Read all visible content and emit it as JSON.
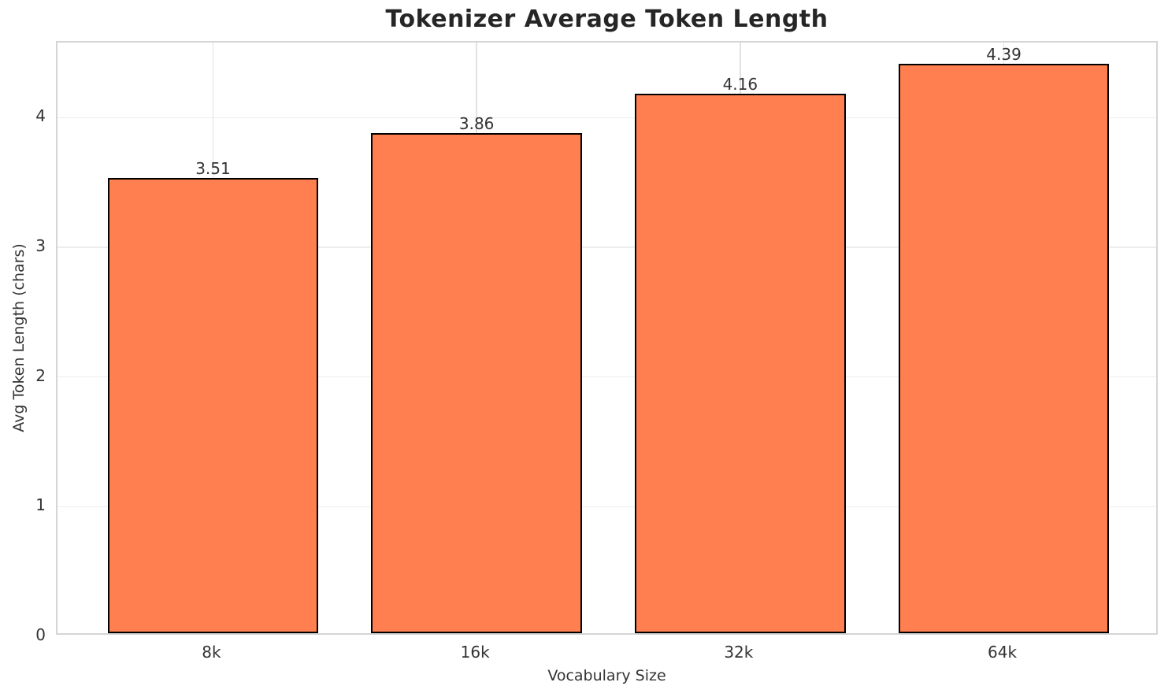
{
  "chart_data": {
    "type": "bar",
    "title": "Tokenizer Average Token Length",
    "xlabel": "Vocabulary Size",
    "ylabel": "Avg Token Length (chars)",
    "categories": [
      "8k",
      "16k",
      "32k",
      "64k"
    ],
    "values": [
      3.51,
      3.86,
      4.16,
      4.39
    ],
    "value_labels": [
      "3.51",
      "3.86",
      "4.16",
      "4.39"
    ],
    "yticks": [
      0,
      1,
      2,
      3,
      4
    ],
    "ylim": [
      0,
      4.58
    ],
    "xlim": [
      -0.59,
      3.59
    ],
    "bar_width": 0.8,
    "grid": true,
    "legend_position": "none",
    "colors": {
      "bar_fill": "#ff7f50",
      "bar_edge": "#000000",
      "grid_line_h": "#ededed",
      "grid_line_v": "#e2e2e2",
      "plot_border": "#d5d5d5",
      "text": "#333333",
      "title_text": "#262626",
      "background": "#ffffff"
    }
  }
}
